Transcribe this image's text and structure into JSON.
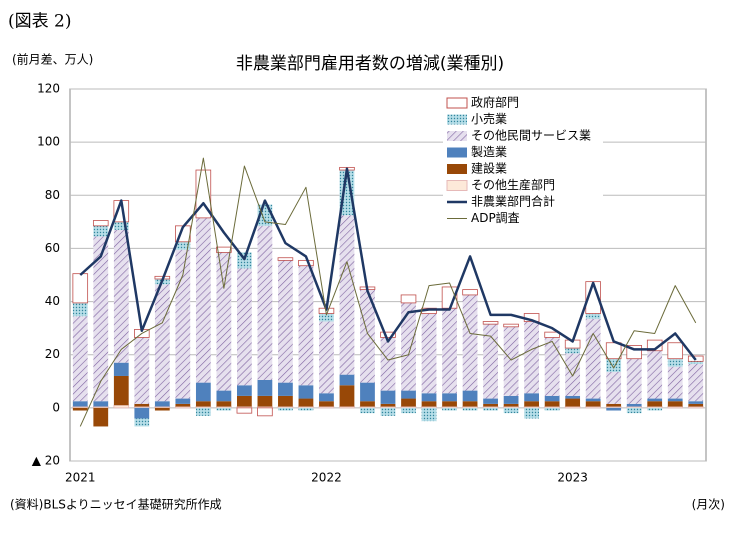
{
  "figure_label": "(図表 2)",
  "chart_data": {
    "type": "bar",
    "title": "非農業部門雇用者数の増減(業種別)",
    "y_label": "(前月差、万人)",
    "x_label": "(月次)",
    "source": "(資料)BLSよりニッセイ基礎研究所作成",
    "categories": [
      "2021",
      null,
      null,
      null,
      null,
      null,
      null,
      null,
      null,
      null,
      null,
      null,
      "2022",
      null,
      null,
      null,
      null,
      null,
      null,
      null,
      null,
      null,
      null,
      null,
      "2023",
      null,
      null,
      null,
      null,
      null,
      null
    ],
    "ylim": [
      -20,
      120
    ],
    "yticks": [
      {
        "value": -20,
        "label": "▲ 20"
      },
      0,
      20,
      40,
      60,
      80,
      100,
      120
    ],
    "grid": true,
    "legend": "upper right",
    "series": [
      {
        "name": "政府部門",
        "type": "bar",
        "color": "#ffffff",
        "stroke": "#c0504d",
        "values": [
          11,
          2,
          8,
          3,
          1,
          6,
          18,
          2,
          -2,
          -3,
          1,
          2,
          2,
          1,
          1,
          2,
          3,
          2,
          8,
          2,
          1,
          1,
          3,
          2,
          3,
          12,
          6,
          5,
          4,
          6,
          2
        ]
      },
      {
        "name": "小売業",
        "type": "bar",
        "color": "#92cddc",
        "values": [
          5,
          4,
          3,
          -3,
          2,
          3,
          -3,
          -1,
          6,
          8,
          -1,
          -1,
          3,
          17,
          -2,
          -3,
          -2,
          -5,
          -1,
          -1,
          -1,
          -2,
          -4,
          -1,
          2,
          2,
          5,
          -2,
          -1,
          3,
          1
        ]
      },
      {
        "name": "その他民間サービス業",
        "type": "bar",
        "color": "#ccc0da",
        "values": [
          32,
          62,
          50,
          25,
          44,
          56,
          62,
          52,
          44,
          58,
          46,
          45,
          27,
          60,
          35,
          20,
          33,
          30,
          32,
          36,
          28,
          26,
          27,
          22,
          16,
          30,
          12,
          17,
          18,
          12,
          14
        ]
      },
      {
        "name": "製造業",
        "type": "bar",
        "color": "#4f81bd",
        "values": [
          2,
          2,
          5,
          -4,
          2,
          2,
          7,
          4,
          4,
          6,
          5,
          5,
          3,
          4,
          7,
          5,
          3,
          3,
          3,
          4,
          2,
          3,
          3,
          2,
          1,
          1,
          -1,
          1,
          1,
          1,
          1
        ]
      },
      {
        "name": "建設業",
        "type": "bar",
        "color": "#984807",
        "values": [
          -1,
          -7,
          11,
          1,
          -1,
          1,
          2,
          2,
          4,
          4,
          4,
          3,
          2,
          8,
          2,
          1,
          3,
          2,
          2,
          2,
          1,
          1,
          2,
          2,
          3,
          2,
          1,
          0,
          2,
          2,
          1
        ]
      },
      {
        "name": "その他生産部門",
        "type": "bar",
        "color": "#fde9d9",
        "stroke": "#e6b9b8",
        "values": [
          0.5,
          0.5,
          1,
          0.5,
          0.5,
          0.5,
          0.5,
          0.5,
          0.5,
          0.5,
          0.5,
          0.5,
          0.5,
          0.5,
          0.5,
          0.5,
          0.5,
          0.5,
          0.5,
          0.5,
          0.5,
          0.5,
          0.5,
          0.5,
          0.5,
          0.5,
          0.5,
          0.5,
          0.5,
          0.5,
          0.5
        ]
      },
      {
        "name": "非農業部門合計",
        "type": "line",
        "color": "#1f3864",
        "width": 2.5,
        "values": [
          50,
          57,
          78,
          29,
          48,
          68,
          77,
          66,
          56,
          78,
          62,
          57,
          37,
          90,
          44,
          25,
          36,
          37,
          37,
          57,
          35,
          35,
          33,
          30,
          25,
          47,
          25,
          22,
          22,
          28,
          18
        ]
      },
      {
        "name": "ADP調査",
        "type": "line",
        "color": "#6b6b3a",
        "width": 1,
        "values": [
          -7,
          10,
          22,
          28,
          32,
          50,
          94,
          45,
          91,
          70,
          69,
          83,
          35,
          55,
          28,
          18,
          20,
          46,
          47,
          28,
          27,
          18,
          22,
          25,
          12,
          28,
          15,
          29,
          28,
          46,
          32
        ]
      }
    ]
  }
}
